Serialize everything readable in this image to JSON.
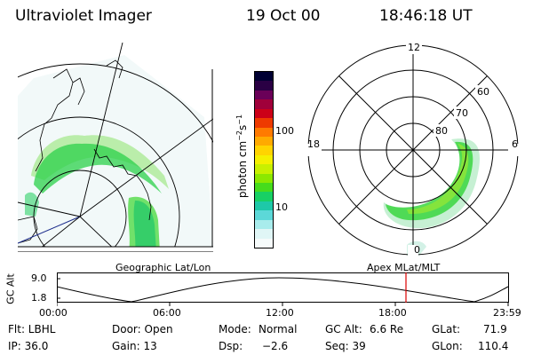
{
  "header": {
    "title": "Ultraviolet Imager",
    "date": "19 Oct 00",
    "time": "18:46:18 UT"
  },
  "panels": {
    "left_label": "Geographic Lat/Lon",
    "right_label": "Apex MLat/MLT"
  },
  "colorbar": {
    "label_main": "photon cm",
    "label_sup1": "−2",
    "label_mid": "s",
    "label_sup2": "−1",
    "ticks": [
      "100",
      "10"
    ],
    "colors": [
      "#000033",
      "#2a0044",
      "#6a0058",
      "#a0003a",
      "#cc0018",
      "#ee3a00",
      "#ff7a00",
      "#ffaa00",
      "#ffd400",
      "#f4f000",
      "#c8f000",
      "#8ce800",
      "#46dc1c",
      "#18d064",
      "#1ec8a8",
      "#5cd8d8",
      "#a8ecec",
      "#e0f6f6",
      "#f6fbfb"
    ]
  },
  "polar_plot": {
    "lat_labels": [
      "60",
      "70",
      "80"
    ],
    "mlt_labels": {
      "top": "12",
      "left": "18",
      "right": "6",
      "bottom": "0"
    }
  },
  "orbit_plot": {
    "ylabel": "GC Alt",
    "yticks": [
      "9.0",
      "1.8"
    ],
    "xticks": [
      "00:00",
      "06:00",
      "12:00",
      "18:00",
      "23:59"
    ],
    "marker_color": "#dd0000"
  },
  "info": {
    "flt": "Flt: LBHL",
    "door": "Door: Open",
    "mode_label": "Mode:",
    "mode_value": "Normal",
    "gc_alt_label": "GC Alt:",
    "gc_alt_value": "6.6 Re",
    "glat_label": "GLat:",
    "glat_value": "71.9",
    "ip": "IP: 36.0",
    "gain": "Gain: 13",
    "dsp_label": "Dsp:",
    "dsp_value": "−2.6",
    "seq": "Seq: 39",
    "glon_label": "GLon:",
    "glon_value": "110.4"
  }
}
